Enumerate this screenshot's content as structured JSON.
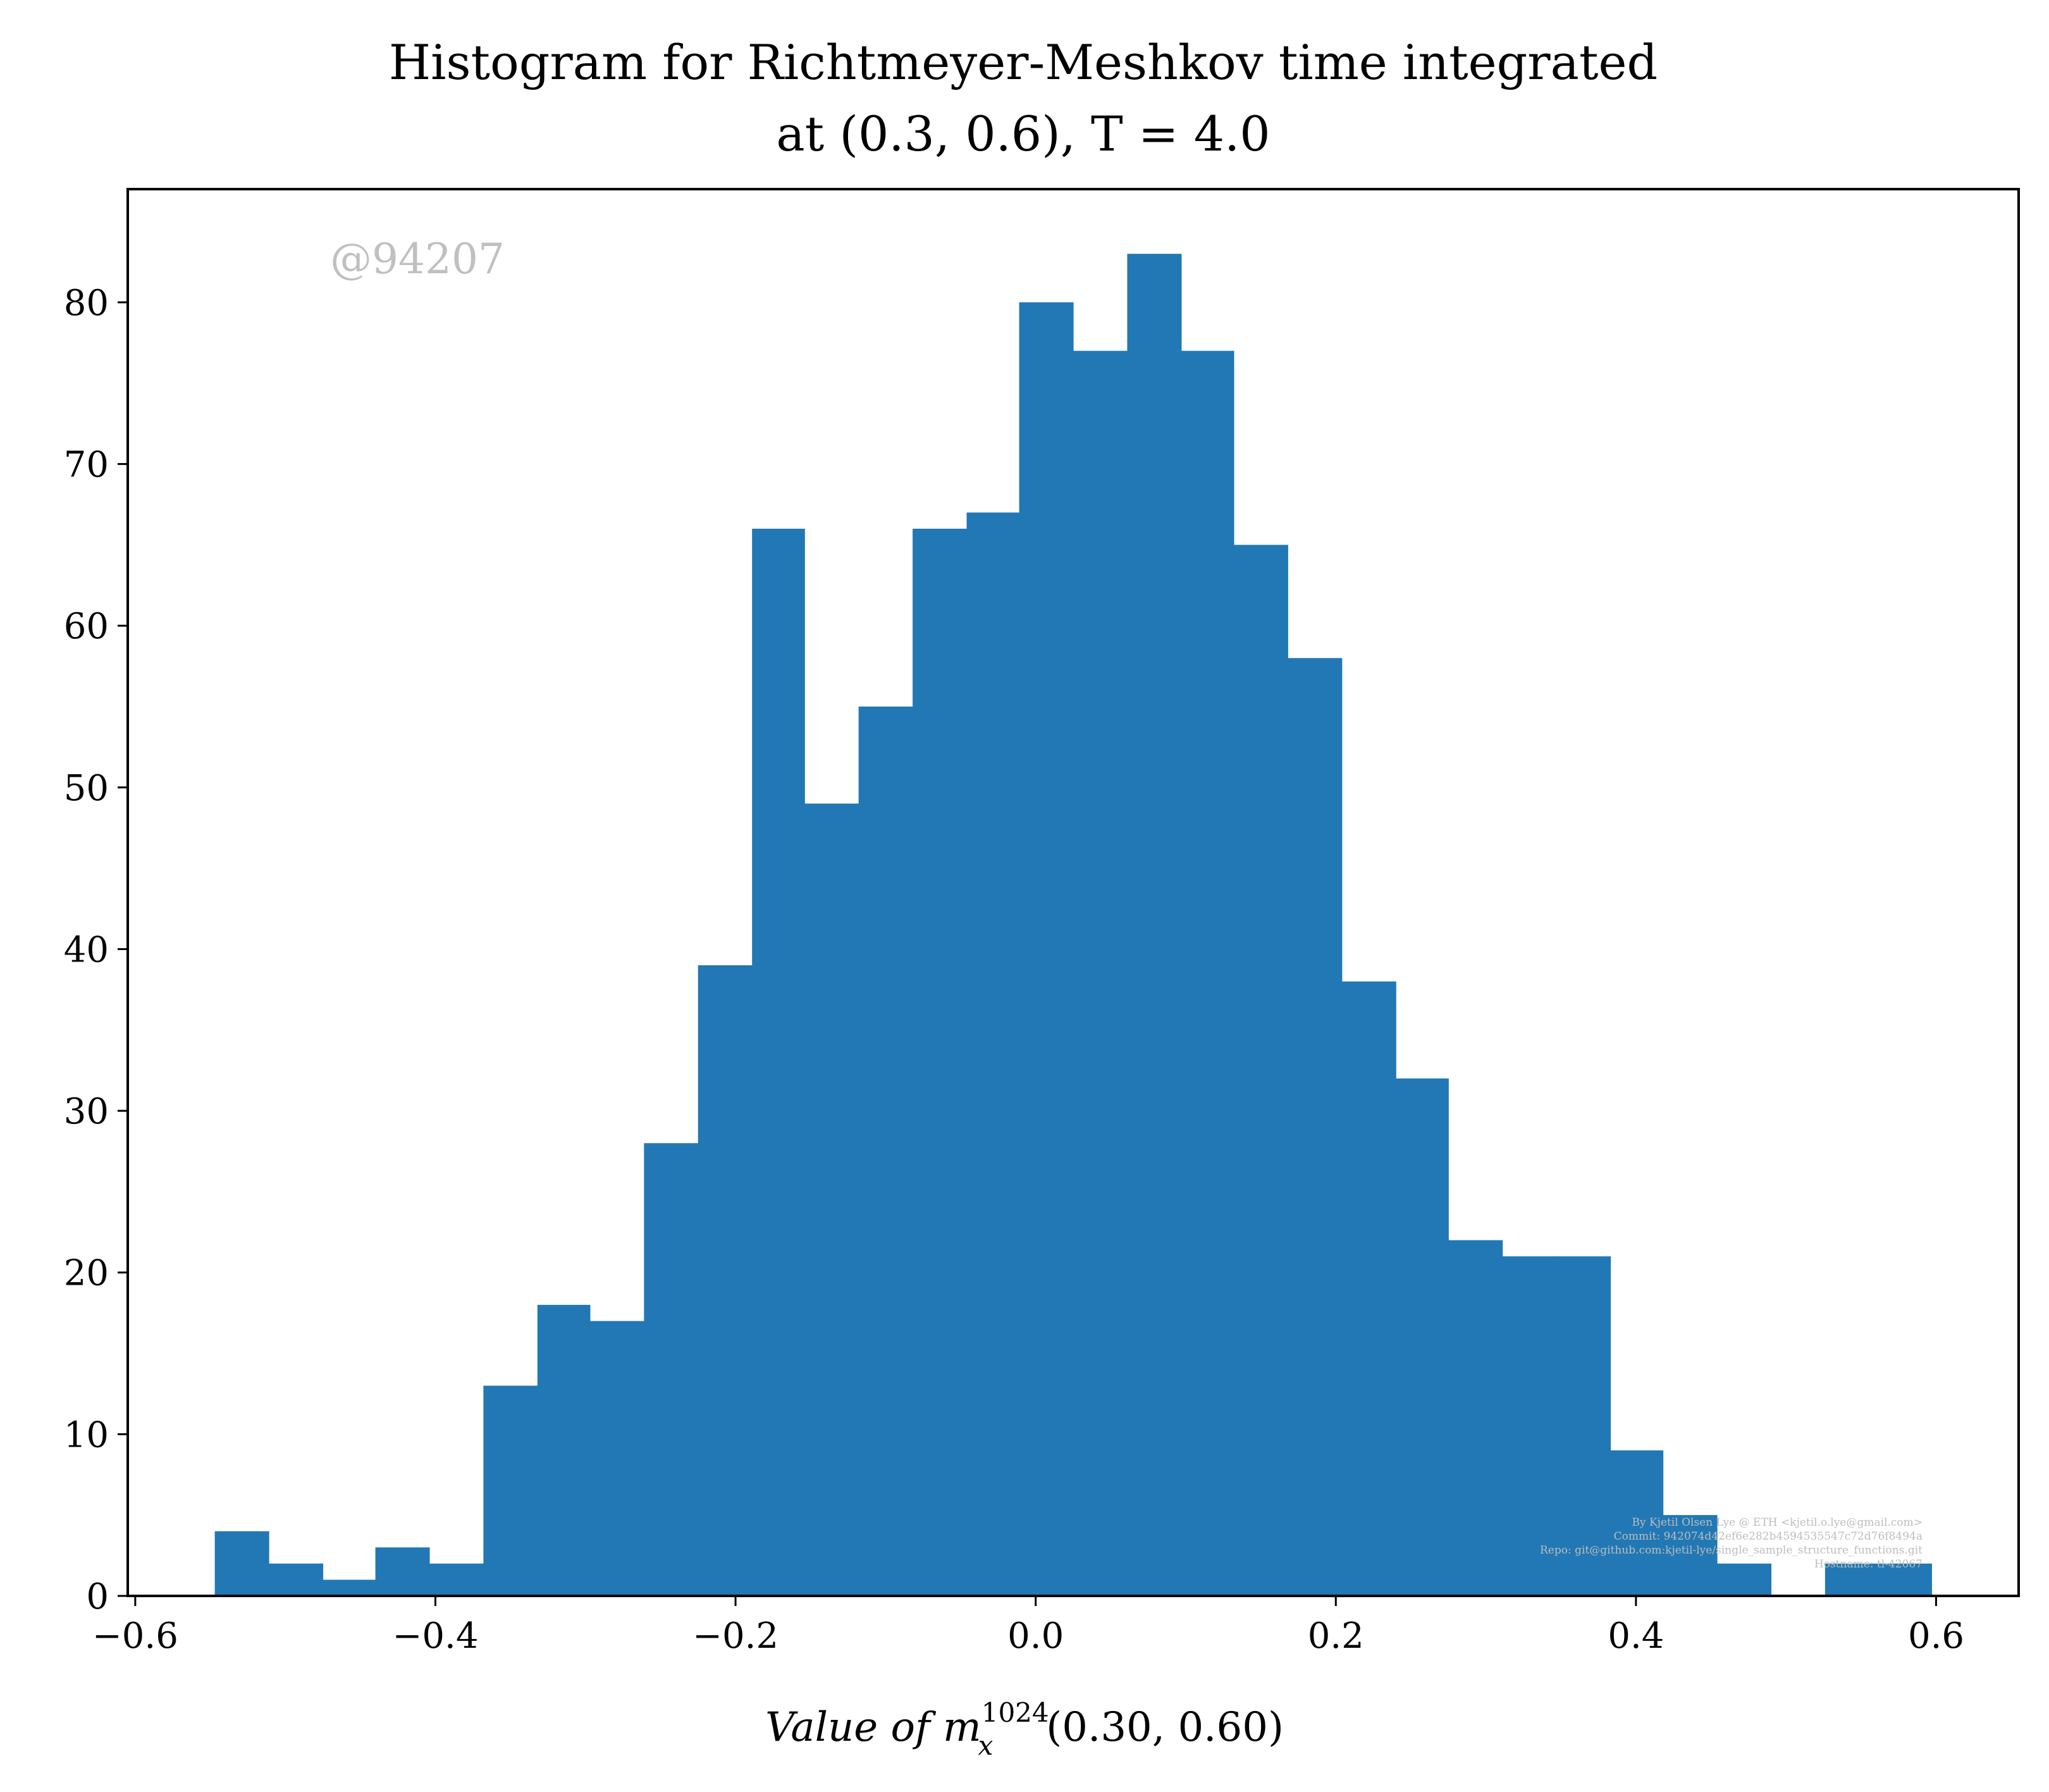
{
  "chart_data": {
    "type": "bar",
    "title_lines": [
      "Histogram for Richtmeyer-Meshkov time integrated",
      "at (0.3, 0.6), T = 4.0"
    ],
    "xlabel": "Value of m_x^1024(0.30, 0.60)",
    "xlabel_parts": {
      "prefix": "Value of m",
      "sub": "x",
      "sup": "1024",
      "suffix": "(0.30, 0.60)"
    },
    "ylabel": "",
    "watermark": "@94207",
    "credits": [
      "By Kjetil Olsen Lye @ ETH <kjetil.o.lye@gmail.com>",
      "Commit: 942074d42ef6e282b4594535547c72d76f8494a",
      "Repo: git@github.com:kjetil-lye/single_sample_structure_functions.git",
      "Hostname: tl-42067"
    ],
    "xlim": [
      -0.605,
      0.655
    ],
    "ylim": [
      0,
      87
    ],
    "xticks": [
      -0.6,
      -0.4,
      -0.2,
      0.0,
      0.2,
      0.4,
      0.6
    ],
    "xtick_labels": [
      "−0.6",
      "−0.4",
      "−0.2",
      "0.0",
      "0.2",
      "0.4",
      "0.6"
    ],
    "yticks": [
      0,
      10,
      20,
      30,
      40,
      50,
      60,
      70,
      80
    ],
    "ytick_labels": [
      "0",
      "10",
      "20",
      "30",
      "40",
      "50",
      "60",
      "70",
      "80"
    ],
    "bin_edges": [
      -0.547,
      -0.511,
      -0.475,
      -0.44,
      -0.404,
      -0.368,
      -0.332,
      -0.297,
      -0.261,
      -0.225,
      -0.189,
      -0.154,
      -0.118,
      -0.082,
      -0.046,
      -0.011,
      0.025,
      0.061,
      0.097,
      0.132,
      0.168,
      0.204,
      0.24,
      0.275,
      0.311,
      0.347,
      0.383,
      0.418,
      0.454,
      0.49,
      0.526,
      0.561,
      0.597
    ],
    "counts": [
      4,
      2,
      1,
      3,
      2,
      13,
      18,
      17,
      28,
      39,
      66,
      49,
      55,
      66,
      67,
      80,
      77,
      83,
      77,
      65,
      58,
      38,
      32,
      22,
      21,
      21,
      9,
      5,
      2,
      0,
      2,
      2
    ],
    "bar_color": "#2178b4",
    "grid": false,
    "legend": "none"
  }
}
